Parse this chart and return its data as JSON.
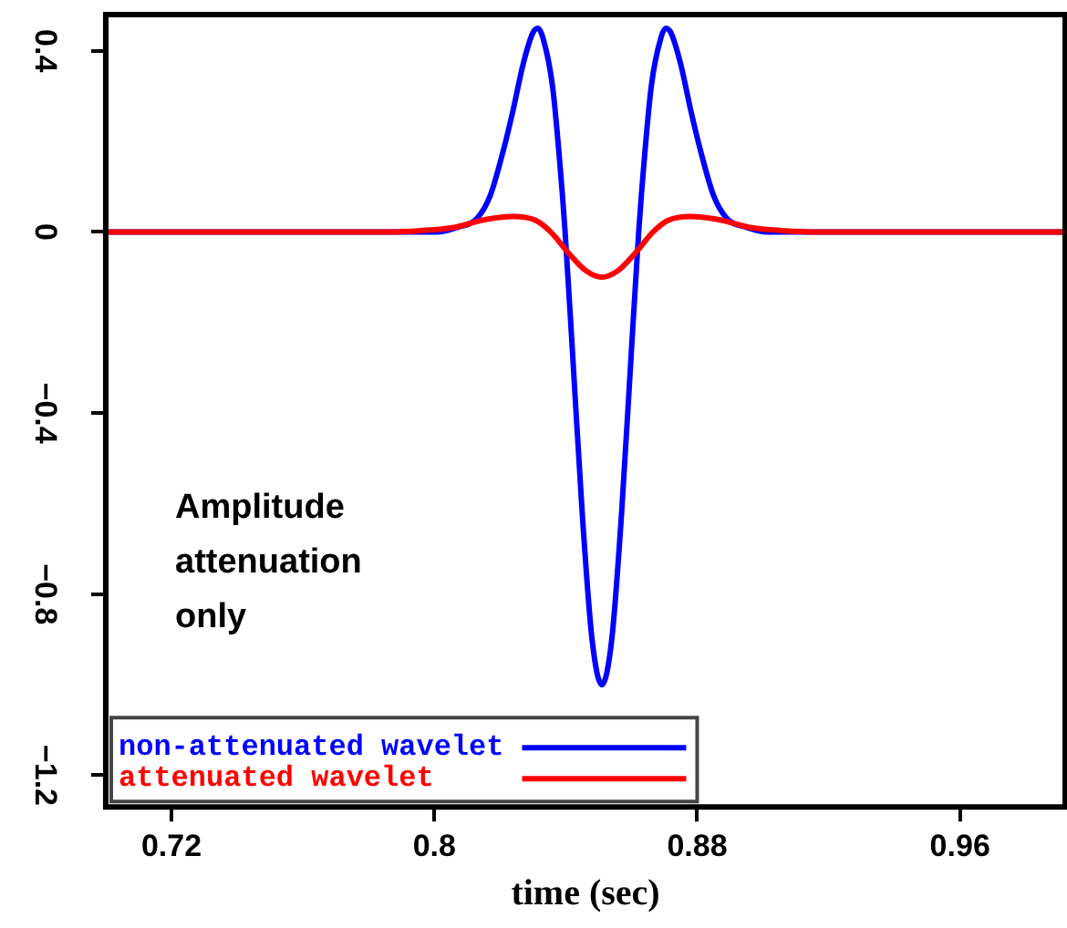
{
  "chart_data": {
    "type": "line",
    "xlabel": "time (sec)",
    "xlim": [
      0.7,
      0.992
    ],
    "xticks": [
      0.72,
      0.8,
      0.88,
      0.96
    ],
    "ylim": [
      -1.27,
      0.48
    ],
    "yticks": [
      0.4,
      0,
      -0.4,
      -0.8,
      -1.2
    ],
    "grid": false,
    "legend": "bottom left",
    "marker": "none",
    "line_style": "solid",
    "annotations": [
      "Amplitude\nattenuation\nonly"
    ],
    "series": [
      {
        "name": "non-attenuated wavelet",
        "color": "#0000ff",
        "x": [
          0.7,
          0.801,
          0.807,
          0.813,
          0.817,
          0.821,
          0.824,
          0.827,
          0.83,
          0.8315,
          0.833,
          0.836,
          0.839,
          0.8398,
          0.842,
          0.845,
          0.848,
          0.851,
          0.854,
          0.857,
          0.86,
          0.8622,
          0.863,
          0.866,
          0.869,
          0.8705,
          0.872,
          0.875,
          0.878,
          0.881,
          0.885,
          0.889,
          0.895,
          0.901,
          0.992
        ],
        "values": [
          0,
          0,
          0.01,
          0.03,
          0.08,
          0.18,
          0.27,
          0.37,
          0.44,
          0.45,
          0.43,
          0.32,
          0.08,
          0,
          -0.26,
          -0.62,
          -0.9,
          -1.0,
          -0.9,
          -0.62,
          -0.26,
          0,
          0.08,
          0.32,
          0.43,
          0.45,
          0.44,
          0.37,
          0.27,
          0.18,
          0.08,
          0.03,
          0.01,
          0,
          0
        ]
      },
      {
        "name": "attenuated wavelet",
        "color": "#ff0000",
        "x": [
          0.7,
          0.786,
          0.796,
          0.806,
          0.816,
          0.824,
          0.831,
          0.8354,
          0.841,
          0.846,
          0.851,
          0.856,
          0.861,
          0.8666,
          0.871,
          0.878,
          0.886,
          0.896,
          0.906,
          0.916,
          0.992
        ],
        "values": [
          0,
          0,
          0.003,
          0.01,
          0.028,
          0.034,
          0.025,
          0,
          -0.048,
          -0.085,
          -0.1,
          -0.085,
          -0.048,
          0,
          0.025,
          0.034,
          0.028,
          0.01,
          0.003,
          0,
          0
        ]
      }
    ]
  }
}
